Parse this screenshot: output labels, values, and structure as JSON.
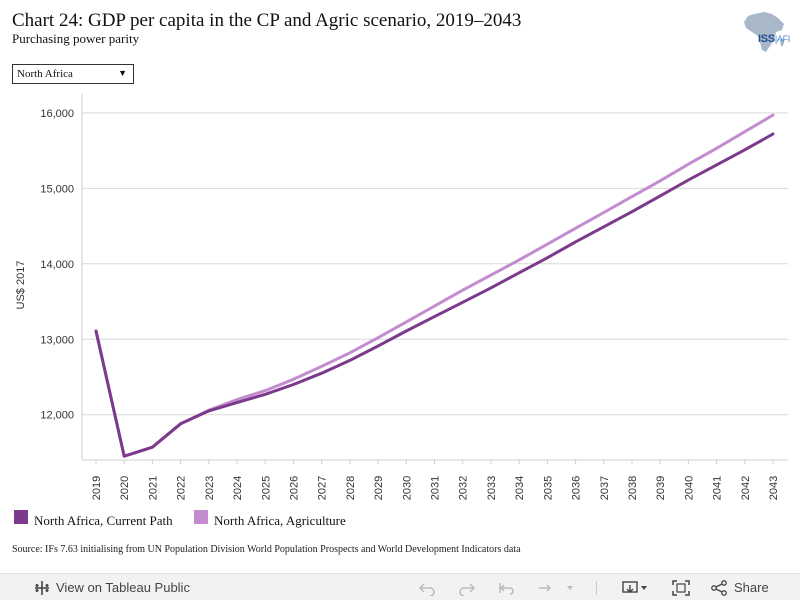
{
  "header": {
    "title": "Chart 24: GDP per capita in the CP and Agric scenario, 2019–2043",
    "subtitle": "Purchasing power parity"
  },
  "logo": {
    "text_main": "ISS",
    "text_secondary": "AFI"
  },
  "filter": {
    "selected": "North Africa"
  },
  "chart_data": {
    "type": "line",
    "title": "Chart 24: GDP per capita in the CP and Agric scenario, 2019–2043",
    "subtitle": "Purchasing power parity",
    "xlabel": "",
    "ylabel": "US$ 2017",
    "ylim": [
      11400,
      16250
    ],
    "yticks": [
      12000,
      13000,
      14000,
      15000,
      16000
    ],
    "ytick_labels": [
      "12,000",
      "13,000",
      "14,000",
      "15,000",
      "16,000"
    ],
    "grid": "horizontal",
    "legend_position": "bottom-left",
    "x": [
      "2019",
      "2020",
      "2021",
      "2022",
      "2023",
      "2024",
      "2025",
      "2026",
      "2027",
      "2028",
      "2029",
      "2030",
      "2031",
      "2032",
      "2033",
      "2034",
      "2035",
      "2036",
      "2037",
      "2038",
      "2039",
      "2040",
      "2041",
      "2042",
      "2043"
    ],
    "series": [
      {
        "name": "North Africa, Current Path",
        "color": "#7b3a8c",
        "values": [
          13110,
          11450,
          11570,
          11880,
          12050,
          12160,
          12270,
          12400,
          12550,
          12720,
          12910,
          13110,
          13300,
          13490,
          13680,
          13880,
          14080,
          14290,
          14490,
          14690,
          14900,
          15110,
          15310,
          15510,
          15720
        ]
      },
      {
        "name": "North Africa, Agriculture",
        "color": "#c38ccf",
        "values": [
          13110,
          11450,
          11570,
          11880,
          12060,
          12200,
          12320,
          12470,
          12640,
          12820,
          13020,
          13230,
          13440,
          13650,
          13850,
          14050,
          14260,
          14470,
          14680,
          14890,
          15100,
          15320,
          15530,
          15750,
          15970
        ]
      }
    ]
  },
  "source": "Source: IFs 7.63 initialising from UN Population Division World Population Prospects and World Development Indicators data",
  "toolbar": {
    "view_label": "View on Tableau Public",
    "share_label": "Share"
  }
}
